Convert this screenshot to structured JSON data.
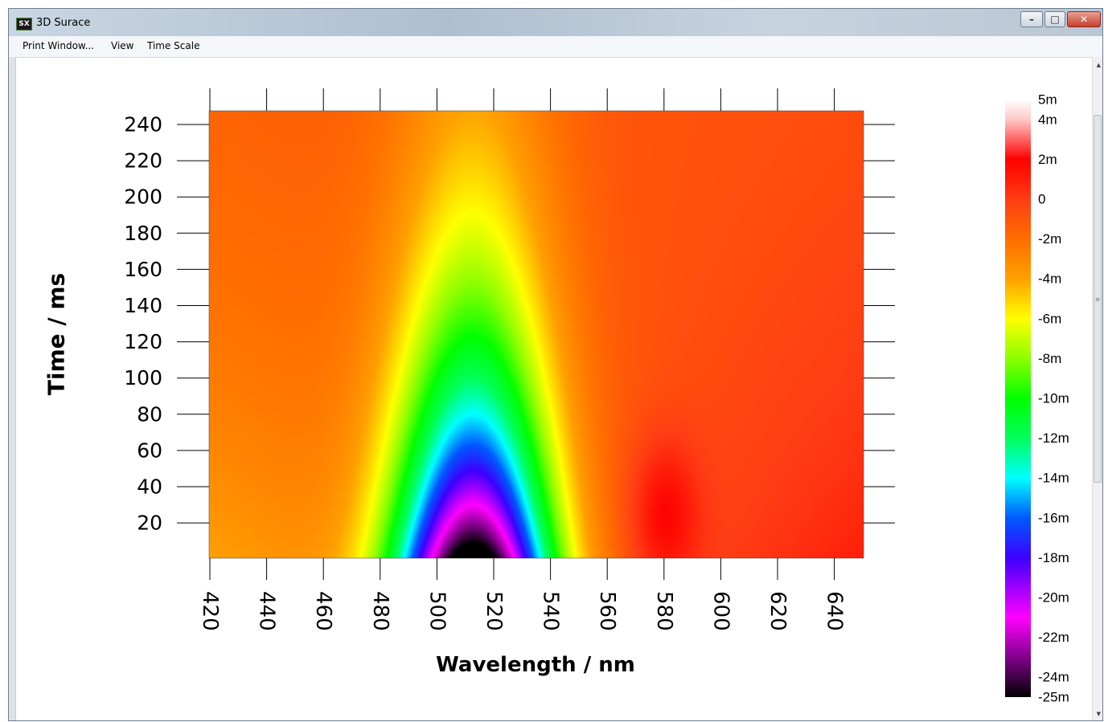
{
  "window": {
    "title": "3D Surace",
    "icon": "SX",
    "controls": {
      "minimize": "–",
      "maximize": "□",
      "close": "✕"
    }
  },
  "menu": {
    "items": [
      "Print Window...",
      "View",
      "Time Scale"
    ]
  },
  "chart_data": {
    "type": "heatmap",
    "xlabel": "Wavelength / nm",
    "ylabel": "Time / ms",
    "x_ticks": [
      420,
      440,
      460,
      480,
      500,
      520,
      540,
      560,
      580,
      600,
      620,
      640
    ],
    "y_ticks": [
      20,
      40,
      60,
      80,
      100,
      120,
      140,
      160,
      180,
      200,
      220,
      240
    ],
    "xlim": [
      420,
      650
    ],
    "ylim": [
      0,
      247
    ],
    "colorbar": {
      "labels": [
        "5m",
        "4m",
        "2m",
        "0",
        "-2m",
        "-4m",
        "-6m",
        "-8m",
        "-10m",
        "-12m",
        "-14m",
        "-16m",
        "-18m",
        "-20m",
        "-22m",
        "-24m",
        "-25m"
      ],
      "values": [
        5,
        4,
        2,
        0,
        -2,
        -4,
        -6,
        -8,
        -10,
        -12,
        -14,
        -16,
        -18,
        -20,
        -22,
        -24,
        -25
      ],
      "range": [
        -25,
        5
      ]
    },
    "features": [
      {
        "kind": "min",
        "wavelength": 513,
        "time": 0,
        "value": -25,
        "width_nm": 28,
        "decay_ms": 115
      },
      {
        "kind": "max",
        "wavelength": 580,
        "time": 25,
        "value": 3.5,
        "width_nm": 12,
        "decay_ms": 40
      }
    ],
    "background": {
      "baseline_at_420": -4,
      "baseline_at_650": 1,
      "late_time_value": -1
    },
    "grid": false
  }
}
